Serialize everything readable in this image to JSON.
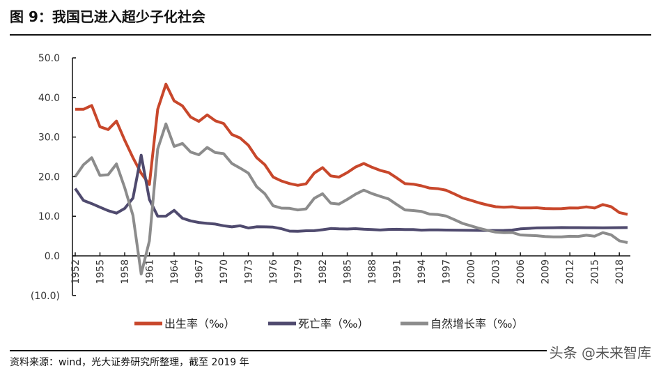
{
  "title": "图 9：我国已进入超少子化社会",
  "source": "资料来源：wind，光大证券研究所整理，截至 2019 年",
  "watermark": "头条 @未来智库",
  "chart_data": {
    "type": "line",
    "title": "",
    "xlabel": "",
    "ylabel": "",
    "ylim": [
      -10,
      50
    ],
    "yticks": [
      "(10.0)",
      "0.0",
      "10.0",
      "20.0",
      "30.0",
      "40.0",
      "50.0"
    ],
    "ytick_values": [
      -10,
      0,
      10,
      20,
      30,
      40,
      50
    ],
    "negative_tick_color": "#e03a3a",
    "xticks": [
      "1952",
      "1955",
      "1958",
      "1961",
      "1964",
      "1967",
      "1970",
      "1973",
      "1976",
      "1979",
      "1982",
      "1985",
      "1988",
      "1991",
      "1994",
      "1997",
      "2000",
      "2003",
      "2006",
      "2009",
      "2012",
      "2015",
      "2018"
    ],
    "grid": false,
    "legend": "bottom",
    "x": [
      1952,
      1953,
      1954,
      1955,
      1956,
      1957,
      1958,
      1959,
      1960,
      1961,
      1962,
      1963,
      1964,
      1965,
      1966,
      1967,
      1968,
      1969,
      1970,
      1971,
      1972,
      1973,
      1974,
      1975,
      1976,
      1977,
      1978,
      1979,
      1980,
      1981,
      1982,
      1983,
      1984,
      1985,
      1986,
      1987,
      1988,
      1989,
      1990,
      1991,
      1992,
      1993,
      1994,
      1995,
      1996,
      1997,
      1998,
      1999,
      2000,
      2001,
      2002,
      2003,
      2004,
      2005,
      2006,
      2007,
      2008,
      2009,
      2010,
      2011,
      2012,
      2013,
      2014,
      2015,
      2016,
      2017,
      2018,
      2019
    ],
    "series": [
      {
        "name": "出生率（‰）",
        "color": "#c8472b",
        "values": [
          37.0,
          37.0,
          37.97,
          32.6,
          31.9,
          34.03,
          29.22,
          24.78,
          20.86,
          18.02,
          37.01,
          43.37,
          39.14,
          37.88,
          35.05,
          33.96,
          35.59,
          34.11,
          33.43,
          30.65,
          29.77,
          27.93,
          24.82,
          23.01,
          19.91,
          18.93,
          18.25,
          17.82,
          18.21,
          20.91,
          22.28,
          20.19,
          19.9,
          21.04,
          22.43,
          23.33,
          22.37,
          21.58,
          21.06,
          19.68,
          18.24,
          18.09,
          17.7,
          17.12,
          16.98,
          16.57,
          15.64,
          14.64,
          14.03,
          13.38,
          12.86,
          12.41,
          12.29,
          12.4,
          12.09,
          12.1,
          12.14,
          11.95,
          11.9,
          11.93,
          12.1,
          12.08,
          12.37,
          12.07,
          12.95,
          12.43,
          10.94,
          10.48
        ]
      },
      {
        "name": "死亡率（‰）",
        "color": "#4f4a6e",
        "values": [
          17.0,
          14.0,
          13.18,
          12.28,
          11.4,
          10.8,
          11.98,
          14.59,
          25.43,
          14.24,
          10.02,
          10.04,
          11.5,
          9.5,
          8.83,
          8.43,
          8.21,
          8.03,
          7.6,
          7.32,
          7.61,
          7.04,
          7.34,
          7.32,
          7.25,
          6.87,
          6.25,
          6.21,
          6.34,
          6.36,
          6.6,
          6.9,
          6.82,
          6.78,
          6.86,
          6.72,
          6.64,
          6.54,
          6.67,
          6.7,
          6.64,
          6.64,
          6.49,
          6.57,
          6.56,
          6.51,
          6.5,
          6.46,
          6.45,
          6.43,
          6.41,
          6.4,
          6.42,
          6.51,
          6.81,
          6.93,
          7.06,
          7.08,
          7.11,
          7.14,
          7.13,
          7.13,
          7.12,
          7.11,
          7.09,
          7.11,
          7.13,
          7.14
        ]
      },
      {
        "name": "自然增长率（‰）",
        "color": "#8c8c8c",
        "values": [
          20.0,
          23.0,
          24.79,
          20.32,
          20.5,
          23.23,
          17.24,
          10.19,
          -4.57,
          3.78,
          26.99,
          33.33,
          27.64,
          28.38,
          26.22,
          25.53,
          27.38,
          26.08,
          25.83,
          23.33,
          22.16,
          20.89,
          17.48,
          15.69,
          12.66,
          12.06,
          12.0,
          11.61,
          11.87,
          14.55,
          15.68,
          13.29,
          13.08,
          14.26,
          15.57,
          16.61,
          15.73,
          15.04,
          14.39,
          12.98,
          11.6,
          11.45,
          11.21,
          10.55,
          10.42,
          10.06,
          9.14,
          8.18,
          7.58,
          6.95,
          6.45,
          6.01,
          5.87,
          5.89,
          5.28,
          5.17,
          5.08,
          4.87,
          4.79,
          4.79,
          4.95,
          4.92,
          5.21,
          4.96,
          5.86,
          5.32,
          3.81,
          3.34
        ]
      }
    ]
  }
}
